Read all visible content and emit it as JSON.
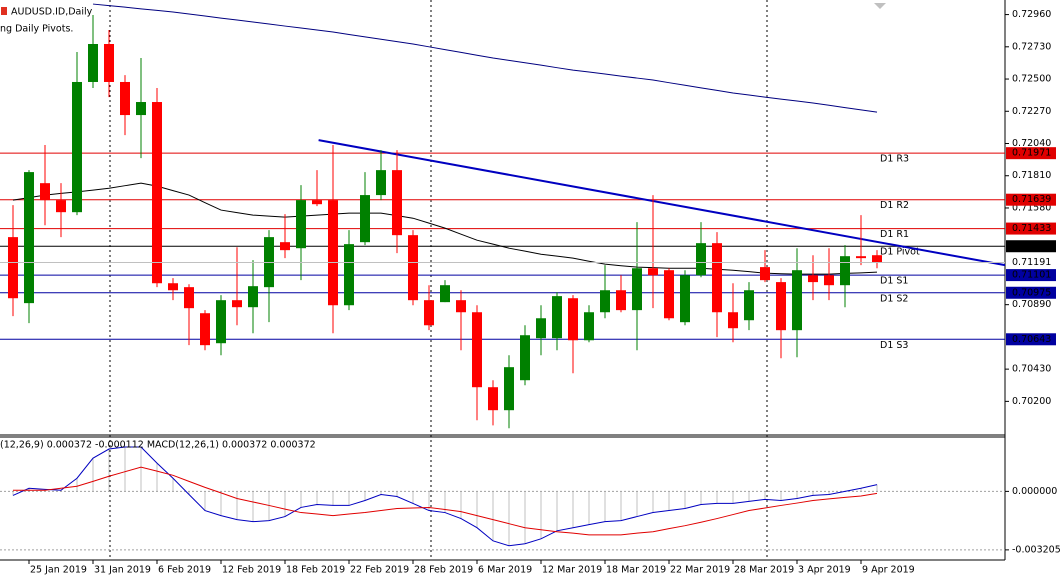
{
  "chart_data": [
    {
      "type": "candlestick",
      "title": "AUDUSD.ID,Daily",
      "subtitle": "ng Daily Pivots.",
      "categories": [
        null,
        "25 Jan 2019",
        null,
        null,
        null,
        "31 Jan 2019",
        null,
        null,
        null,
        "6 Feb 2019",
        null,
        null,
        null,
        "12 Feb 2019",
        null,
        null,
        null,
        "18 Feb 2019",
        null,
        null,
        null,
        "22 Feb 2019",
        null,
        null,
        null,
        "28 Feb 2019",
        null,
        null,
        null,
        "6 Mar 2019",
        null,
        null,
        null,
        "12 Mar 2019",
        null,
        null,
        null,
        "18 Mar 2019",
        null,
        null,
        null,
        "22 Mar 2019",
        null,
        null,
        null,
        "28 Mar 2019",
        null,
        null,
        null,
        "3 Apr 2019",
        null,
        null,
        null,
        "9 Apr 2019",
        null
      ],
      "open": [
        0.71372,
        0.70901,
        0.71757,
        0.71636,
        0.7155,
        0.72479,
        0.7275,
        0.72479,
        0.72243,
        0.72336,
        0.71043,
        0.71015,
        0.70829,
        0.70615,
        0.70922,
        0.70872,
        0.71015,
        0.71336,
        0.71293,
        0.71636,
        0.71636,
        0.70886,
        0.71336,
        0.71672,
        0.7185,
        0.71386,
        0.70922,
        0.70908,
        0.70922,
        0.70836,
        0.70301,
        0.70137,
        0.70351,
        0.70651,
        0.70651,
        0.70936,
        0.70636,
        0.70836,
        0.70993,
        0.70851,
        0.7115,
        0.71136,
        0.70765,
        0.711,
        0.71329,
        0.70836,
        0.70779,
        0.71158,
        0.71051,
        0.70708,
        0.711,
        0.711,
        0.71029,
        0.71236,
        0.71243
      ],
      "high": [
        0.716,
        0.7185,
        0.72029,
        0.71757,
        0.72693,
        0.72957,
        0.7285,
        0.72528,
        0.7265,
        0.72436,
        0.71079,
        0.71036,
        0.70851,
        0.70958,
        0.713,
        0.71208,
        0.71422,
        0.71536,
        0.71743,
        0.7185,
        0.72029,
        0.71422,
        0.71836,
        0.71993,
        0.71993,
        0.71422,
        0.71029,
        0.71065,
        0.70993,
        0.70886,
        0.70351,
        0.70529,
        0.70743,
        0.70886,
        0.70979,
        0.70958,
        0.70886,
        0.71172,
        0.711,
        0.71479,
        0.71672,
        0.7115,
        0.71136,
        0.71479,
        0.71408,
        0.71043,
        0.71051,
        0.71279,
        0.71079,
        0.71293,
        0.71243,
        0.71293,
        0.71315,
        0.71529,
        0.71279
      ],
      "low": [
        0.70808,
        0.70758,
        0.71457,
        0.71372,
        0.71529,
        0.72436,
        0.72371,
        0.721,
        0.71936,
        0.71015,
        0.70922,
        0.70601,
        0.70565,
        0.70529,
        0.70743,
        0.70686,
        0.70765,
        0.71222,
        0.71065,
        0.71593,
        0.70686,
        0.70851,
        0.71315,
        0.71636,
        0.71258,
        0.70886,
        0.70708,
        0.70908,
        0.70565,
        0.70065,
        0.70029,
        0.70008,
        0.70315,
        0.70529,
        0.70565,
        0.70401,
        0.70622,
        0.70793,
        0.70836,
        0.70565,
        0.70865,
        0.70779,
        0.70743,
        0.71086,
        0.70658,
        0.70622,
        0.70708,
        0.71051,
        0.70508,
        0.70515,
        0.70922,
        0.70922,
        0.70872,
        0.71172,
        0.7115
      ],
      "close": [
        0.70936,
        0.71836,
        0.71636,
        0.7155,
        0.72479,
        0.7275,
        0.72479,
        0.72243,
        0.72336,
        0.71043,
        0.70993,
        0.70865,
        0.70601,
        0.70922,
        0.70872,
        0.71022,
        0.71372,
        0.71279,
        0.71636,
        0.71607,
        0.70886,
        0.71322,
        0.71672,
        0.7185,
        0.71386,
        0.70922,
        0.70743,
        0.71029,
        0.70836,
        0.70301,
        0.70137,
        0.70444,
        0.70672,
        0.70793,
        0.70951,
        0.70636,
        0.70836,
        0.70993,
        0.70851,
        0.7115,
        0.711,
        0.70793,
        0.711,
        0.71329,
        0.70836,
        0.70722,
        0.70993,
        0.71065,
        0.70708,
        0.71136,
        0.71051,
        0.71029,
        0.71236,
        0.71222,
        0.71191
      ],
      "up_color": "#008000",
      "down_color": "#ff0000",
      "lines": [
        {
          "color": "#000080",
          "values": [
            null,
            null,
            null,
            null,
            null,
            0.73035,
            0.73024,
            0.73013,
            0.73001,
            0.7299,
            0.72978,
            0.72964,
            0.7295,
            0.72935,
            0.72921,
            0.72907,
            0.72893,
            0.72878,
            0.72864,
            0.7285,
            0.72836,
            0.72818,
            0.72801,
            0.72784,
            0.72767,
            0.7275,
            0.7273,
            0.7271,
            0.7269,
            0.7267,
            0.7265,
            0.72633,
            0.72616,
            0.72599,
            0.72581,
            0.72564,
            0.7255,
            0.72536,
            0.72521,
            0.72507,
            0.72493,
            0.72474,
            0.72456,
            0.72437,
            0.72419,
            0.724,
            0.72386,
            0.72371,
            0.72357,
            0.72343,
            0.72329,
            0.72313,
            0.72296,
            0.7228,
            0.72264
          ]
        },
        {
          "color": "#000000",
          "values": [
            0.71636,
            0.71654,
            0.71672,
            0.71684,
            0.71695,
            0.71707,
            0.71721,
            0.71739,
            0.71757,
            0.71736,
            0.71704,
            0.71672,
            0.71618,
            0.71565,
            0.71547,
            0.71529,
            0.71522,
            0.71515,
            0.71522,
            0.71529,
            0.71536,
            0.71543,
            0.71543,
            0.71543,
            0.71525,
            0.71507,
            0.71472,
            0.71436,
            0.71393,
            0.7135,
            0.71322,
            0.71293,
            0.71272,
            0.7125,
            0.71236,
            0.71222,
            0.712,
            0.71179,
            0.71168,
            0.71158,
            0.71154,
            0.7115,
            0.7115,
            0.7115,
            0.71143,
            0.71136,
            0.71126,
            0.71115,
            0.71111,
            0.71108,
            0.71108,
            0.71108,
            0.71113,
            0.71117,
            0.71122
          ]
        }
      ],
      "trendline": {
        "color": "#0000c0",
        "x": [
          19.1,
          62
        ],
        "values": [
          0.72064,
          0.71172
        ]
      },
      "levels": [
        {
          "name": "D1 R3",
          "value": 0.71971,
          "color": "#e00000"
        },
        {
          "name": "D1 R2",
          "value": 0.71639,
          "color": "#e00000"
        },
        {
          "name": "D1 R1",
          "value": 0.71433,
          "color": "#e00000"
        },
        {
          "name": "D1 Pivot",
          "value": 0.71307,
          "color": "#000000"
        },
        {
          "name": "D1 S1",
          "value": 0.71101,
          "color": "#0000a0"
        },
        {
          "name": "D1 S2",
          "value": 0.70975,
          "color": "#0000a0"
        },
        {
          "name": "D1 S3",
          "value": 0.70643,
          "color": "#0000a0"
        }
      ],
      "ylim": [
        0.6996,
        0.73064
      ],
      "yticks": [
        {
          "value": 0.7296,
          "label": "0.72960"
        },
        {
          "value": 0.7273,
          "label": "0.72730"
        },
        {
          "value": 0.725,
          "label": "0.72500"
        },
        {
          "value": 0.7227,
          "label": "0.72270"
        },
        {
          "value": 0.7204,
          "label": "0.72040"
        },
        {
          "value": 0.7181,
          "label": "0.71810"
        },
        {
          "value": 0.7158,
          "label": "0.71580"
        },
        {
          "value": 0.7089,
          "label": "0.70890"
        },
        {
          "value": 0.7043,
          "label": "0.70430"
        },
        {
          "value": 0.702,
          "label": "0.70200"
        }
      ]
    },
    {
      "type": "macd",
      "title": "(12,26,9) 0.000372 -0.000112 MACD(12,26,1) 0.000372 0.000372",
      "histogram_color": "#c0c0c0",
      "series": [
        {
          "color": "#0000c0",
          "values": [
            -0.00022,
            0.00017,
            0.00011,
            6e-05,
            0.00072,
            0.00182,
            0.00232,
            0.00243,
            0.00243,
            0.00155,
            0.00072,
            -0.00017,
            -0.00105,
            -0.00133,
            -0.00155,
            -0.00166,
            -0.0016,
            -0.00138,
            -0.00088,
            -0.00072,
            -0.00077,
            -0.00077,
            -0.0005,
            -0.00017,
            -0.00028,
            -0.00066,
            -0.00105,
            -0.00116,
            -0.00149,
            -0.00199,
            -0.00271,
            -0.00298,
            -0.00287,
            -0.0026,
            -0.00216,
            -0.00199,
            -0.00182,
            -0.00166,
            -0.0016,
            -0.00138,
            -0.00116,
            -0.00105,
            -0.00094,
            -0.00072,
            -0.00066,
            -0.00066,
            -0.00055,
            -0.00044,
            -0.0005,
            -0.00039,
            -0.00022,
            -0.00017,
            0.0,
            0.00017,
            0.00037
          ]
        },
        {
          "color": "#e00000",
          "values": [
            6e-05,
            6e-05,
            6e-05,
            0.00017,
            0.00028,
            0.00055,
            0.00083,
            0.00108,
            0.00133,
            0.00111,
            0.00088,
            0.00055,
            0.00022,
            -8e-05,
            -0.00039,
            -0.00058,
            -0.00077,
            -0.00097,
            -0.00116,
            -0.00124,
            -0.00133,
            -0.00124,
            -0.00116,
            -0.00105,
            -0.00094,
            -0.00091,
            -0.00088,
            -0.00099,
            -0.00111,
            -0.00133,
            -0.00155,
            -0.00177,
            -0.00199,
            -0.0021,
            -0.00221,
            -0.00229,
            -0.00238,
            -0.00238,
            -0.00238,
            -0.00229,
            -0.00221,
            -0.00204,
            -0.00188,
            -0.00169,
            -0.00149,
            -0.00127,
            -0.00105,
            -0.00091,
            -0.00077,
            -0.00064,
            -0.0005,
            -0.00041,
            -0.00033,
            -0.00025,
            -0.00011
          ]
        }
      ],
      "ylim": [
        -0.00376,
        0.00298
      ],
      "yticks": [
        {
          "value": 0,
          "label": "0.000000"
        },
        {
          "value": -0.003205,
          "label": "-0.003205"
        }
      ]
    }
  ]
}
